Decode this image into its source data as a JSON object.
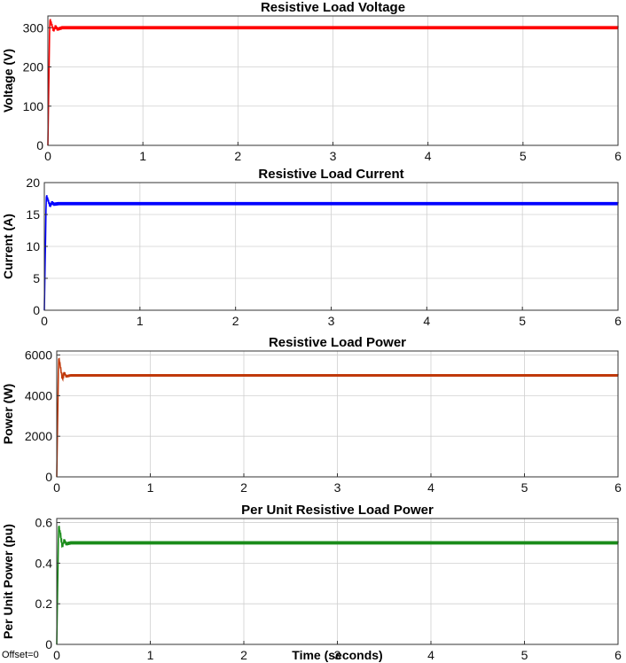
{
  "footer": {
    "offset_label": "Offset=0"
  },
  "chart_data": [
    {
      "type": "line",
      "title": "Resistive Load Voltage",
      "xlabel": "",
      "ylabel": "Voltage (V)",
      "xlim": [
        0,
        6
      ],
      "ylim": [
        0,
        330
      ],
      "xticks": [
        0,
        1,
        2,
        3,
        4,
        5,
        6
      ],
      "yticks": [
        0,
        100,
        200,
        300
      ],
      "grid": true,
      "series": [
        {
          "color": "#ff0000",
          "x": [
            0,
            0.02,
            0.04,
            0.06,
            0.08,
            0.1,
            0.15,
            0.2,
            0.3,
            6
          ],
          "y": [
            0,
            322,
            308,
            292,
            304,
            296,
            300,
            300,
            300,
            300
          ],
          "ripple": 4
        }
      ]
    },
    {
      "type": "line",
      "title": "Resistive Load Current",
      "xlabel": "",
      "ylabel": "Current (A)",
      "xlim": [
        0,
        6
      ],
      "ylim": [
        0,
        20
      ],
      "xticks": [
        0,
        1,
        2,
        3,
        4,
        5,
        6
      ],
      "yticks": [
        0,
        5,
        10,
        15,
        20
      ],
      "grid": true,
      "series": [
        {
          "color": "#0000ff",
          "x": [
            0,
            0.02,
            0.04,
            0.06,
            0.08,
            0.1,
            0.15,
            0.2,
            0.3,
            6
          ],
          "y": [
            0,
            18,
            17.2,
            16.3,
            16.9,
            16.6,
            16.7,
            16.7,
            16.7,
            16.7
          ],
          "ripple": 0.25
        }
      ]
    },
    {
      "type": "line",
      "title": "Resistive Load Power",
      "xlabel": "",
      "ylabel": "Power (W)",
      "xlim": [
        0,
        6
      ],
      "ylim": [
        0,
        6200
      ],
      "xticks": [
        0,
        1,
        2,
        3,
        4,
        5,
        6
      ],
      "yticks": [
        0,
        2000,
        4000,
        6000
      ],
      "grid": true,
      "series": [
        {
          "color": "#c0390b",
          "x": [
            0,
            0.02,
            0.04,
            0.06,
            0.08,
            0.1,
            0.15,
            0.2,
            0.3,
            6
          ],
          "y": [
            0,
            5900,
            5400,
            4800,
            5150,
            4950,
            5000,
            5000,
            5000,
            5000
          ],
          "ripple": 60
        }
      ]
    },
    {
      "type": "line",
      "title": "Per Unit Resistive Load Power",
      "xlabel": "Time (seconds)",
      "ylabel": "Per Unit Power (pu)",
      "xlim": [
        0,
        6
      ],
      "ylim": [
        0,
        0.62
      ],
      "xticks": [
        0,
        1,
        2,
        3,
        4,
        5,
        6
      ],
      "yticks": [
        0,
        0.2,
        0.4,
        0.6
      ],
      "grid": true,
      "series": [
        {
          "color": "#1a8c1a",
          "x": [
            0,
            0.02,
            0.04,
            0.06,
            0.08,
            0.1,
            0.15,
            0.2,
            0.3,
            6
          ],
          "y": [
            0,
            0.59,
            0.54,
            0.48,
            0.515,
            0.495,
            0.5,
            0.5,
            0.5,
            0.5
          ],
          "ripple": 0.008
        }
      ]
    }
  ]
}
